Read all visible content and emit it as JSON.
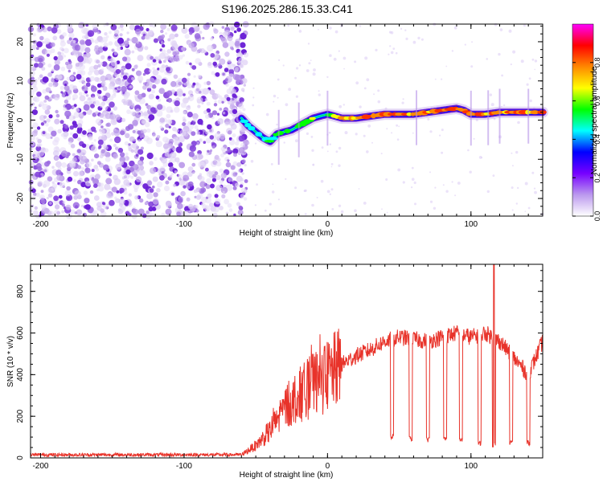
{
  "title": "S196.2025.286.15.33.C41",
  "chart_data": [
    {
      "type": "heatmap",
      "name": "spectrogram",
      "xlabel": "Height of straight line (km)",
      "ylabel": "Frequency (Hz)",
      "xlim": [
        -207,
        150
      ],
      "ylim": [
        -24.5,
        24.5
      ],
      "xticks": [
        -200,
        -100,
        0,
        100
      ],
      "yticks": [
        -20,
        -10,
        0,
        10,
        20
      ],
      "noise_region_km": [
        -207,
        -60
      ],
      "signal_track": {
        "x": [
          -60,
          -55,
          -50,
          -45,
          -40,
          -35,
          -30,
          -25,
          -20,
          -15,
          -10,
          -5,
          0,
          5,
          10,
          20,
          30,
          40,
          50,
          60,
          70,
          80,
          90,
          95,
          100,
          110,
          120,
          130,
          140,
          150
        ],
        "y": [
          0.5,
          -1.5,
          -3,
          -4.5,
          -5.5,
          -3.5,
          -3,
          -2.5,
          -1.5,
          -0.5,
          0.5,
          1,
          1.5,
          1,
          0.5,
          0.5,
          1,
          1.5,
          1.5,
          1.5,
          2,
          2.5,
          3,
          2.5,
          1.5,
          1.5,
          2,
          2,
          2,
          2
        ]
      },
      "colorbar": {
        "label": "Normalized spectral amplitude",
        "range": [
          0,
          1
        ],
        "ticks": [
          "0.0",
          "0.2",
          "0.4",
          "0.6",
          "0.8"
        ],
        "colors": [
          "#ffffff",
          "#bb99ee",
          "#7700ff",
          "#0000ff",
          "#00ffff",
          "#00ff00",
          "#ffff00",
          "#ff8800",
          "#ff0000",
          "#ff00ff"
        ]
      }
    },
    {
      "type": "line",
      "name": "snr",
      "xlabel": "Height of straight line (km)",
      "ylabel": "SNR (10 * v/v)",
      "xlim": [
        -207,
        150
      ],
      "ylim": [
        0,
        930
      ],
      "xticks": [
        -200,
        -100,
        0,
        100
      ],
      "yticks": [
        0,
        200,
        400,
        600,
        800
      ],
      "color": "#e8332a",
      "envelope": {
        "x": [
          -207,
          -60,
          -50,
          -40,
          -30,
          -20,
          -10,
          0,
          10,
          20,
          30,
          40,
          50,
          60,
          70,
          80,
          90,
          100,
          110,
          120,
          130,
          140,
          150
        ],
        "y": [
          15,
          15,
          60,
          130,
          240,
          300,
          350,
          390,
          450,
          490,
          520,
          560,
          580,
          570,
          560,
          580,
          600,
          580,
          600,
          560,
          480,
          400,
          560
        ]
      },
      "dropouts": [
        {
          "x": 45,
          "y": 90
        },
        {
          "x": 58,
          "y": 80
        },
        {
          "x": 70,
          "y": 75
        },
        {
          "x": 82,
          "y": 80
        },
        {
          "x": 93,
          "y": 75
        },
        {
          "x": 106,
          "y": 60
        },
        {
          "x": 116,
          "y": 50
        },
        {
          "x": 128,
          "y": 60
        },
        {
          "x": 140,
          "y": 60
        }
      ],
      "peak": {
        "x": 116,
        "y": 930
      }
    }
  ]
}
